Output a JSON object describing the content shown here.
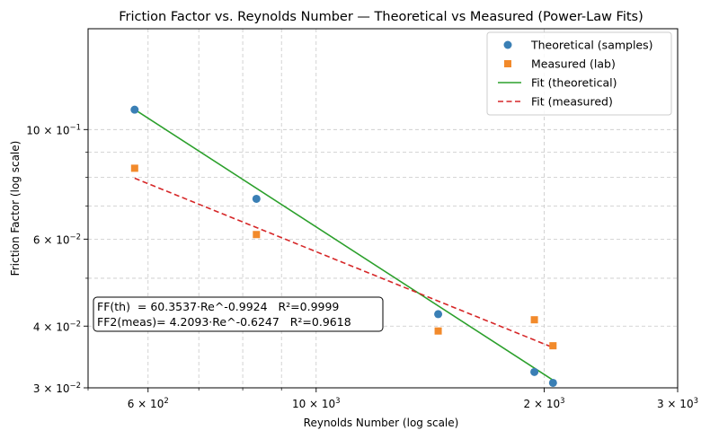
{
  "chart_data": {
    "type": "scatter",
    "title": "Friction Factor vs. Reynolds Number — Theoretical vs Measured (Power-Law Fits)",
    "xlabel": "Reynolds Number (log scale)",
    "ylabel": "Friction Factor (log scale)",
    "xscale": "log",
    "yscale": "log",
    "xlim": [
      500,
      3000
    ],
    "ylim": [
      0.03,
      0.16
    ],
    "grid": true,
    "legend_position": "top-right",
    "x_ticks": [
      {
        "value": 600,
        "base": "6",
        "exp": "2"
      },
      {
        "value": 1000,
        "base": "10",
        "exp": "3"
      },
      {
        "value": 2000,
        "base": "2",
        "exp": "3"
      },
      {
        "value": 3000,
        "base": "3",
        "exp": "3"
      }
    ],
    "y_ticks": [
      {
        "value": 0.03,
        "base": "3",
        "exp": "−2"
      },
      {
        "value": 0.04,
        "base": "4",
        "exp": "−2"
      },
      {
        "value": 0.06,
        "base": "6",
        "exp": "−2"
      },
      {
        "value": 0.1,
        "base": "10",
        "exp": "−1"
      }
    ],
    "x_minor_ticks": [
      500,
      700,
      800,
      900
    ],
    "y_minor_ticks": [
      0.05,
      0.07,
      0.08,
      0.09
    ],
    "series": [
      {
        "name": "Theoretical (samples)",
        "marker": "circle",
        "color": "#3a7fb5",
        "points": [
          [
            576,
            0.1097
          ],
          [
            834,
            0.0724
          ],
          [
            1449,
            0.0423
          ],
          [
            1941,
            0.0323
          ],
          [
            2054,
            0.0307
          ]
        ]
      },
      {
        "name": "Measured (lab)",
        "marker": "square",
        "color": "#f28a2b",
        "points": [
          [
            576,
            0.0835
          ],
          [
            834,
            0.0613
          ],
          [
            1449,
            0.0391
          ],
          [
            1941,
            0.0412
          ],
          [
            2054,
            0.0365
          ]
        ]
      },
      {
        "name": "Fit (theoretical)",
        "line": "solid",
        "color": "#2ca02c",
        "points": [
          [
            576,
            0.1098
          ],
          [
            2054,
            0.0311
          ]
        ]
      },
      {
        "name": "Fit (measured)",
        "line": "dashed",
        "color": "#d62728",
        "points": [
          [
            576,
            0.0797
          ],
          [
            2054,
            0.0362
          ]
        ]
      }
    ],
    "annotation": [
      "FF(th)  = 60.3537·Re^-0.9924   R²=0.9999",
      "FF2(meas)= 4.2093·Re^-0.6247   R²=0.9618"
    ]
  }
}
